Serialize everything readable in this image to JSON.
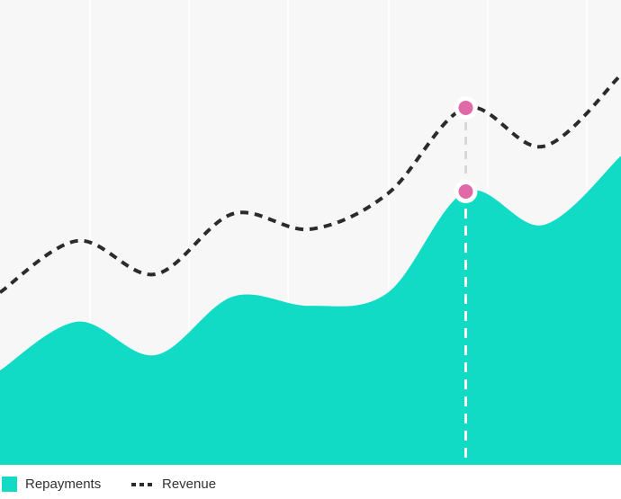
{
  "chart_data": {
    "type": "area-line",
    "categories": [
      null,
      null,
      null,
      null,
      null,
      null,
      null,
      null,
      null
    ],
    "series": [
      {
        "name": "Repayments",
        "color": "#11dbc5",
        "values": [
          20.3,
          30.8,
          23.6,
          36.2,
          34.2,
          37.1,
          58.8,
          51.6,
          66.5
        ]
      },
      {
        "name": "Revenue",
        "color": "#2b2b2b",
        "values": [
          37.1,
          48.2,
          41.0,
          54.0,
          50.7,
          58.4,
          76.8,
          68.5,
          83.9
        ]
      }
    ],
    "ylim": [
      0,
      100
    ],
    "highlight_color": "#e06aa8",
    "grid": true
  }
}
